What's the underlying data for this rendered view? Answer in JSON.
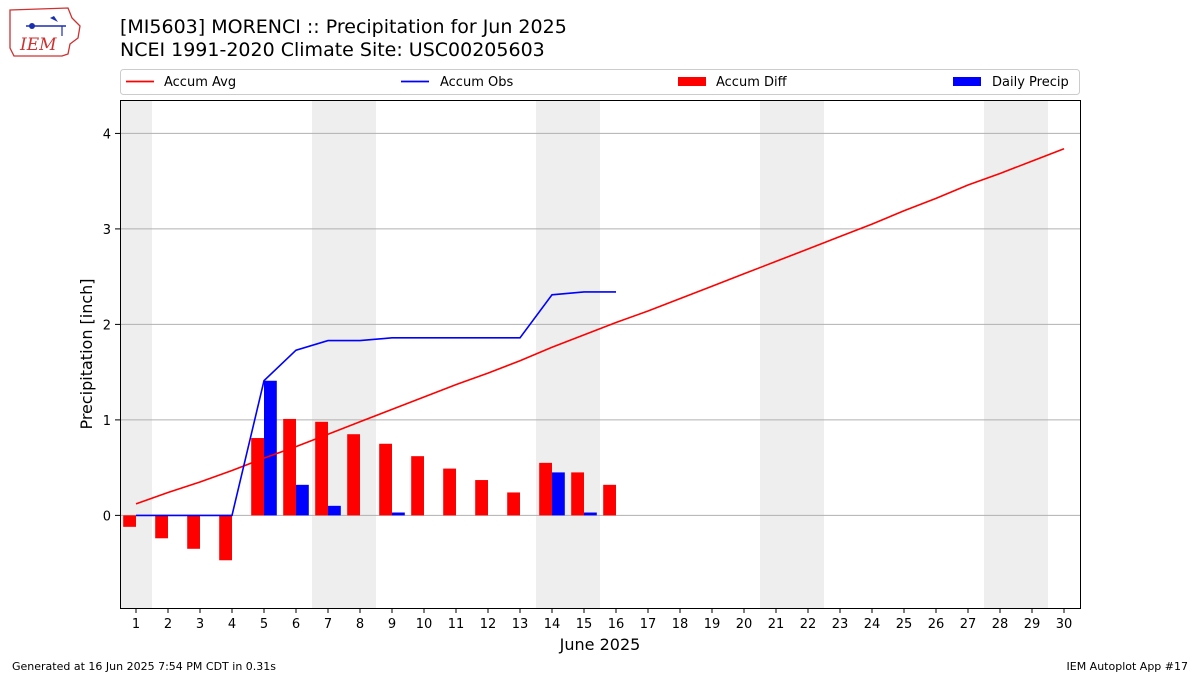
{
  "header": {
    "title": "[MI5603] MORENCI :: Precipitation for Jun 2025",
    "subtitle": "NCEI 1991-2020 Climate Site: USC00205603",
    "logo_text": "IEM"
  },
  "footer": {
    "left": "Generated at 16 Jun 2025 7:54 PM CDT in 0.31s",
    "right": "IEM Autoplot App #17"
  },
  "colors": {
    "accum_avg": "#ff0000",
    "accum_obs": "#0000ff",
    "accum_diff": "#ff0000",
    "daily_precip": "#0000ff",
    "weekend_shade": "#eeeeee",
    "grid": "#b0b0b0",
    "logo": "#d03030"
  },
  "chart_data": {
    "type": "bar",
    "xlabel": "June 2025",
    "ylabel": "Precipitation [inch]",
    "xlim": [
      0.5,
      30.5
    ],
    "ylim": [
      -0.97,
      4.35
    ],
    "yticks": [
      0,
      1,
      2,
      3,
      4
    ],
    "grid": "horizontal",
    "legend_position": "top",
    "legend": [
      "Accum Avg",
      "Accum Obs",
      "Accum Diff",
      "Daily Precip"
    ],
    "days": [
      1,
      2,
      3,
      4,
      5,
      6,
      7,
      8,
      9,
      10,
      11,
      12,
      13,
      14,
      15,
      16,
      17,
      18,
      19,
      20,
      21,
      22,
      23,
      24,
      25,
      26,
      27,
      28,
      29,
      30
    ],
    "weekend_days": [
      1,
      7,
      8,
      14,
      15,
      21,
      22,
      28,
      29
    ],
    "series": [
      {
        "name": "Accum Avg",
        "kind": "line",
        "x": [
          1,
          2,
          3,
          4,
          5,
          6,
          7,
          8,
          9,
          10,
          11,
          12,
          13,
          14,
          15,
          16,
          17,
          18,
          19,
          20,
          21,
          22,
          23,
          24,
          25,
          26,
          27,
          28,
          29,
          30
        ],
        "values": [
          0.12,
          0.24,
          0.35,
          0.47,
          0.6,
          0.72,
          0.85,
          0.98,
          1.11,
          1.24,
          1.37,
          1.49,
          1.62,
          1.76,
          1.89,
          2.02,
          2.14,
          2.27,
          2.4,
          2.53,
          2.66,
          2.79,
          2.92,
          3.05,
          3.19,
          3.32,
          3.46,
          3.58,
          3.71,
          3.84
        ]
      },
      {
        "name": "Accum Obs",
        "kind": "line",
        "x": [
          1,
          2,
          3,
          4,
          5,
          6,
          7,
          8,
          9,
          10,
          11,
          12,
          13,
          14,
          15,
          16
        ],
        "values": [
          0,
          0,
          0,
          0,
          1.41,
          1.73,
          1.83,
          1.83,
          1.86,
          1.86,
          1.86,
          1.86,
          1.86,
          2.31,
          2.34,
          2.34
        ]
      },
      {
        "name": "Accum Diff",
        "kind": "bar",
        "x": [
          1,
          2,
          3,
          4,
          5,
          6,
          7,
          8,
          9,
          10,
          11,
          12,
          13,
          14,
          15,
          16
        ],
        "values": [
          -0.12,
          -0.24,
          -0.35,
          -0.47,
          0.81,
          1.01,
          0.98,
          0.85,
          0.75,
          0.62,
          0.49,
          0.37,
          0.24,
          0.55,
          0.45,
          0.32
        ]
      },
      {
        "name": "Daily Precip",
        "kind": "bar",
        "x": [
          1,
          2,
          3,
          4,
          5,
          6,
          7,
          8,
          9,
          10,
          11,
          12,
          13,
          14,
          15,
          16
        ],
        "values": [
          0,
          0,
          0,
          0,
          1.41,
          0.32,
          0.1,
          0,
          0.03,
          0,
          0,
          0,
          0,
          0.45,
          0.03,
          0
        ]
      }
    ]
  }
}
